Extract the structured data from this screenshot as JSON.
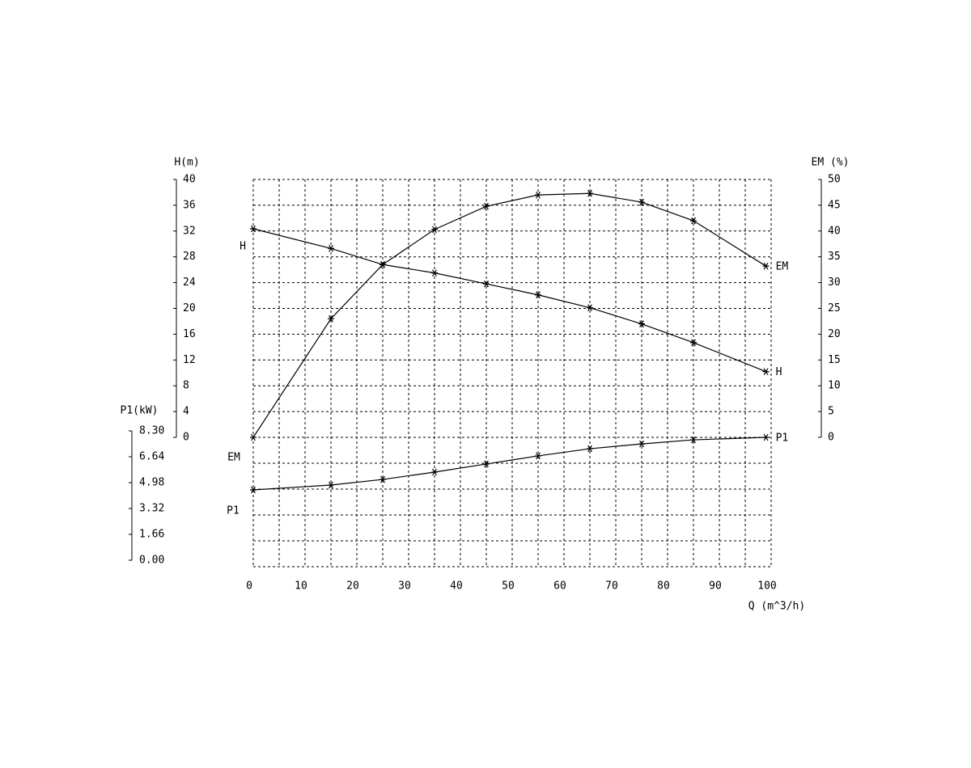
{
  "chart_data": {
    "type": "line",
    "x_label": "Q (m^3/h)",
    "y_label": "H(m)",
    "y2_label": "EM (%)",
    "y3_label": "P1(kW)",
    "x": [
      0,
      15,
      25,
      35,
      45,
      55,
      65,
      75,
      85,
      99
    ],
    "xlim": [
      0,
      100
    ],
    "xticks": [
      0,
      10,
      20,
      30,
      40,
      50,
      60,
      70,
      80,
      90,
      100
    ],
    "ylim": [
      0,
      40
    ],
    "yticks": [
      0,
      4,
      8,
      12,
      16,
      20,
      24,
      28,
      32,
      36,
      40
    ],
    "y2lim": [
      0,
      50
    ],
    "y2ticks": [
      0,
      5,
      10,
      15,
      20,
      25,
      30,
      35,
      40,
      45,
      50
    ],
    "y3lim": [
      0,
      8.3
    ],
    "y3ticks": [
      {
        "value": 0,
        "label": "0.00"
      },
      {
        "value": 1.66,
        "label": "1.66"
      },
      {
        "value": 3.32,
        "label": "3.32"
      },
      {
        "value": 4.98,
        "label": "4.98"
      },
      {
        "value": 6.64,
        "label": "6.64"
      },
      {
        "value": 8.3,
        "label": "8.30"
      }
    ],
    "grid": true,
    "series": [
      {
        "name": "H",
        "color": "#000000",
        "axis": "y",
        "values": [
          32.35,
          29.3,
          26.8,
          25.5,
          23.8,
          22.1,
          20.1,
          17.6,
          14.7,
          10.2
        ]
      },
      {
        "name": "EM",
        "color": "#000000",
        "axis": "y2",
        "values": [
          0,
          23.0,
          33.5,
          40.3,
          44.8,
          47.0,
          47.3,
          45.6,
          42.0,
          33.2
        ]
      },
      {
        "name": "P1",
        "color": "#000000",
        "axis": "y3",
        "values": [
          4.93,
          5.24,
          5.6,
          6.07,
          6.59,
          7.11,
          7.57,
          7.88,
          8.14,
          8.3
        ]
      }
    ],
    "annotations": [
      "H",
      "EM",
      "P1"
    ]
  }
}
